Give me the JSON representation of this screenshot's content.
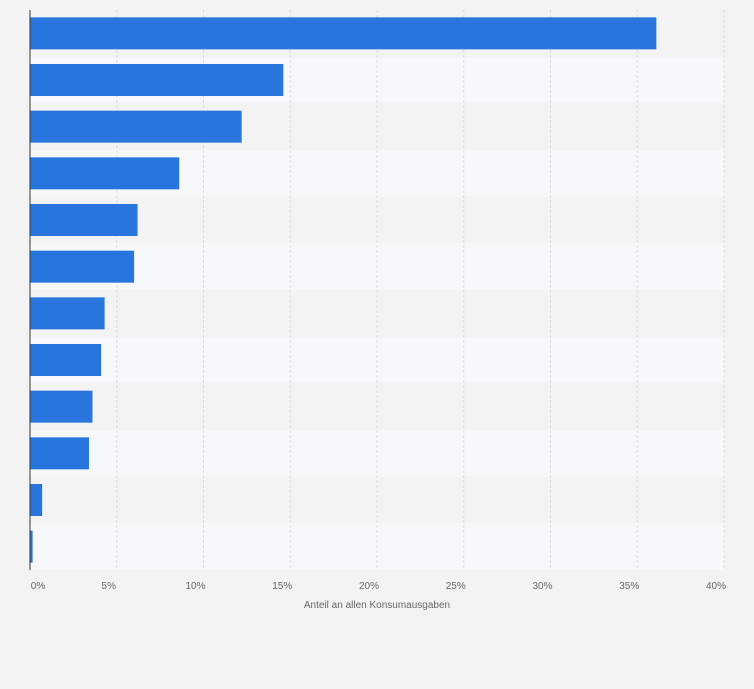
{
  "chart_data": {
    "type": "bar",
    "orientation": "horizontal",
    "categories": [
      "",
      "",
      "",
      "",
      "",
      "",
      "",
      "",
      "",
      "",
      "",
      ""
    ],
    "values": [
      36.1,
      14.6,
      12.2,
      8.6,
      6.2,
      6.0,
      4.3,
      4.1,
      3.6,
      3.4,
      0.7,
      0.15
    ],
    "xlabel": "Anteil an allen Konsumausgaben",
    "xlim": [
      0,
      40
    ],
    "xticks": [
      0,
      5,
      10,
      15,
      20,
      25,
      30,
      35,
      40
    ],
    "xtick_labels": [
      "0%",
      "5%",
      "10%",
      "15%",
      "20%",
      "25%",
      "30%",
      "35%",
      "40%"
    ],
    "grid": true,
    "colors": {
      "bar": "#2876dd",
      "band_dark": "#f3f3f4",
      "band_light": "#f7f8f9",
      "grid": "#dcdcdc",
      "axis": "#333333",
      "text": "#666666"
    }
  }
}
